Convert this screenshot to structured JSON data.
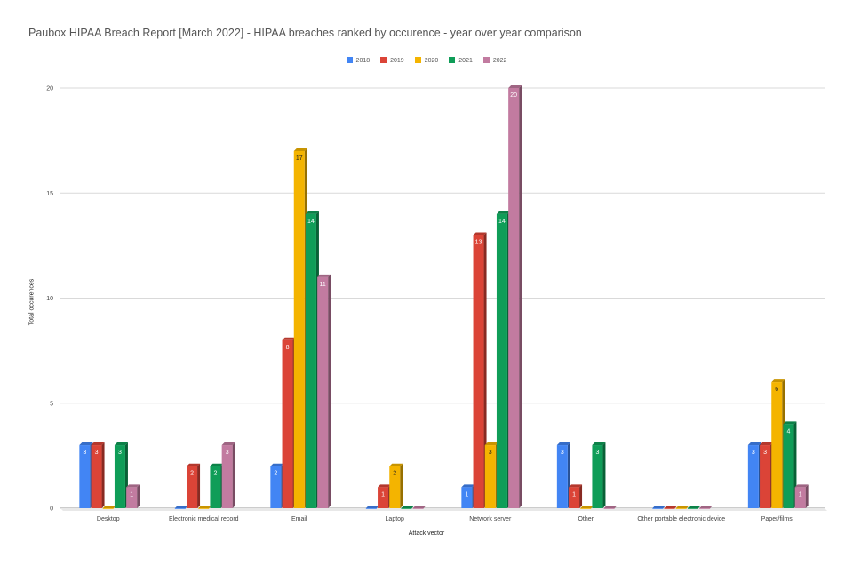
{
  "chart_data": {
    "type": "bar",
    "title": "Paubox HIPAA Breach Report [March 2022] - HIPAA breaches ranked by occurence - year over year comparison",
    "xlabel": "Attack vector",
    "ylabel": "Total occurences",
    "ylim": [
      0,
      20
    ],
    "yticks": [
      "0",
      "5",
      "10",
      "15",
      "20"
    ],
    "grid": true,
    "legend_position": "top",
    "categories": [
      "Desktop",
      "Electronic medical record",
      "Email",
      "Laptop",
      "Network server",
      "Other",
      "Other portable electronic device",
      "Paper/films"
    ],
    "series": [
      {
        "name": "2018",
        "color": "#4285f4",
        "values": [
          3,
          0,
          2,
          0,
          1,
          3,
          0,
          3
        ]
      },
      {
        "name": "2019",
        "color": "#db4437",
        "values": [
          3,
          2,
          8,
          1,
          13,
          1,
          0,
          3
        ]
      },
      {
        "name": "2020",
        "color": "#f4b400",
        "values": [
          0,
          0,
          17,
          2,
          3,
          0,
          0,
          6
        ]
      },
      {
        "name": "2021",
        "color": "#0f9d58",
        "values": [
          3,
          2,
          14,
          0,
          14,
          3,
          0,
          4
        ]
      },
      {
        "name": "2022",
        "color": "#c27ba0",
        "values": [
          1,
          3,
          11,
          0,
          20,
          0,
          0,
          1
        ]
      }
    ]
  }
}
